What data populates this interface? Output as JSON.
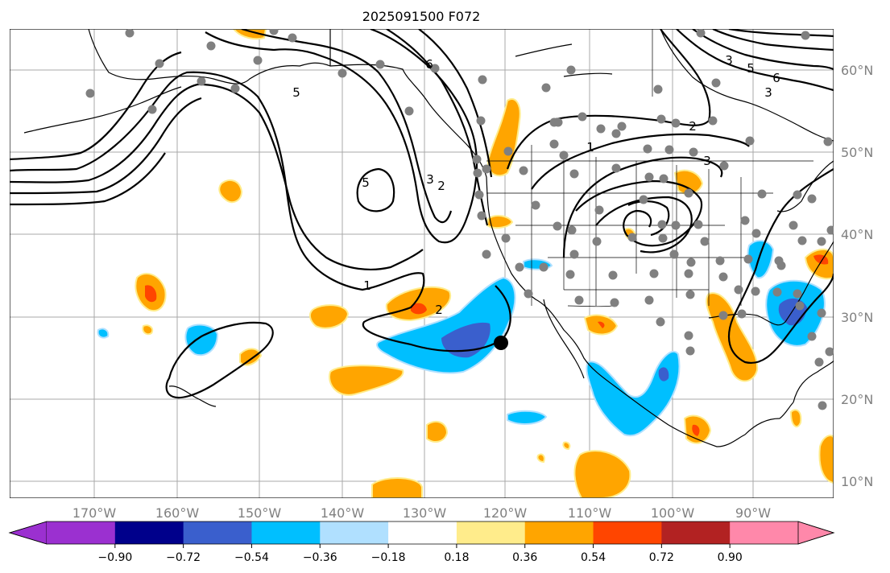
{
  "title": "2025091500 F072",
  "lat_labels": [
    "60°N",
    "50°N",
    "40°N",
    "30°N",
    "20°N",
    "10°N"
  ],
  "lon_labels": [
    "170°W",
    "160°W",
    "150°W",
    "140°W",
    "130°W",
    "120°W",
    "110°W",
    "100°W",
    "90°W"
  ],
  "colorbar": {
    "labels": [
      "−0.90",
      "−0.72",
      "−0.54",
      "−0.36",
      "−0.18",
      "0.18",
      "0.36",
      "0.54",
      "0.72",
      "0.90"
    ],
    "colors": [
      "#9b30d0",
      "#00008b",
      "#3a5fcd",
      "#00bfff",
      "#b0e0ff",
      "#ffffff",
      "#ffec8b",
      "#ffa500",
      "#ff4500",
      "#b22222",
      "#ff88aa"
    ]
  },
  "contour_labels": [
    "1",
    "2",
    "3",
    "5",
    "6"
  ],
  "fill_colors": {
    "orange": "#ffa500",
    "yellow_edge": "#ffec8b",
    "red": "#ff4500",
    "cyan": "#00bfff",
    "light_blue_edge": "#b0e0ff",
    "blue": "#3a5fcd"
  },
  "marker_color": "#808080"
}
